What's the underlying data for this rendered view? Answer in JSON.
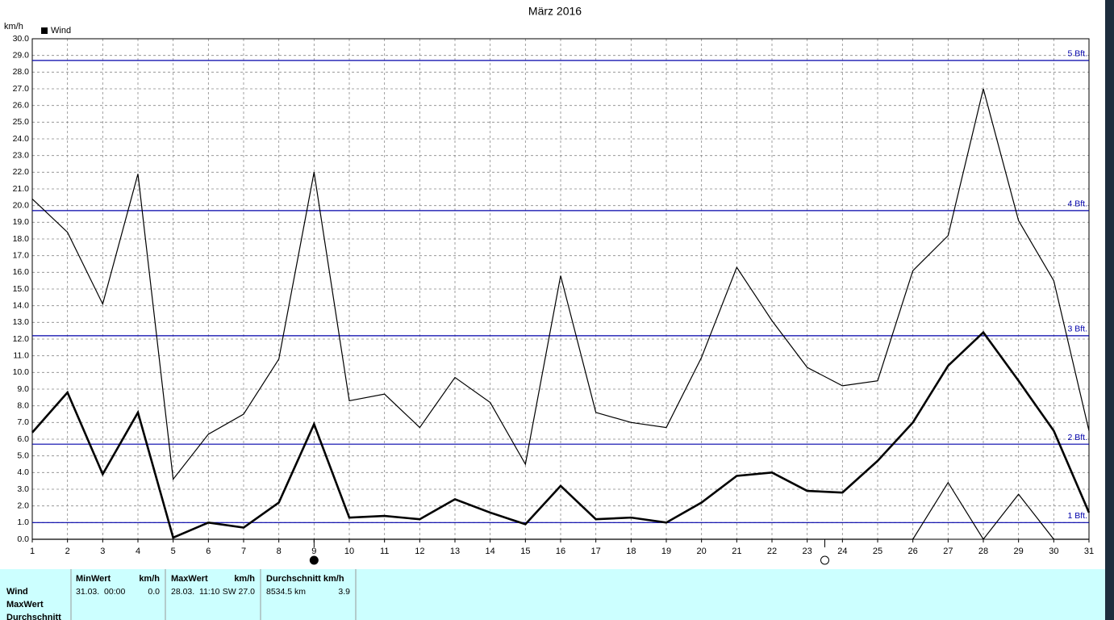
{
  "chart_data": {
    "type": "line",
    "title": "März 2016",
    "y_label": "km/h",
    "legend": "Wind",
    "x": [
      1,
      2,
      3,
      4,
      5,
      6,
      7,
      8,
      9,
      10,
      11,
      12,
      13,
      14,
      15,
      16,
      17,
      18,
      19,
      20,
      21,
      22,
      23,
      24,
      25,
      26,
      27,
      28,
      29,
      30,
      31
    ],
    "xlim": [
      1,
      31
    ],
    "xticks": [
      1,
      2,
      3,
      4,
      5,
      6,
      7,
      8,
      9,
      10,
      11,
      12,
      13,
      14,
      15,
      16,
      17,
      18,
      19,
      20,
      21,
      22,
      23,
      24,
      25,
      26,
      27,
      28,
      29,
      30,
      31
    ],
    "ylim": [
      0,
      30
    ],
    "yticks": [
      {
        "value": 0,
        "label": "0.0"
      },
      {
        "value": 1,
        "label": "1.0"
      },
      {
        "value": 2,
        "label": "2.0"
      },
      {
        "value": 3,
        "label": "3.0"
      },
      {
        "value": 4,
        "label": "4.0"
      },
      {
        "value": 5,
        "label": "5.0"
      },
      {
        "value": 6,
        "label": "6.0"
      },
      {
        "value": 7,
        "label": "7.0"
      },
      {
        "value": 8,
        "label": "8.0"
      },
      {
        "value": 9,
        "label": "9.0"
      },
      {
        "value": 10,
        "label": "10.0"
      },
      {
        "value": 11,
        "label": "11.0"
      },
      {
        "value": 12,
        "label": "12.0"
      },
      {
        "value": 13,
        "label": "13.0"
      },
      {
        "value": 14,
        "label": "14.0"
      },
      {
        "value": 15,
        "label": "15.0"
      },
      {
        "value": 16,
        "label": "16.0"
      },
      {
        "value": 17,
        "label": "17.0"
      },
      {
        "value": 18,
        "label": "18.0"
      },
      {
        "value": 19,
        "label": "19.0"
      },
      {
        "value": 20,
        "label": "20.0"
      },
      {
        "value": 21,
        "label": "21.0"
      },
      {
        "value": 22,
        "label": "22.0"
      },
      {
        "value": 23,
        "label": "23.0"
      },
      {
        "value": 24,
        "label": "24.0"
      },
      {
        "value": 25,
        "label": "25.0"
      },
      {
        "value": 26,
        "label": "26.0"
      },
      {
        "value": 27,
        "label": "27.0"
      },
      {
        "value": 28,
        "label": "28.0"
      },
      {
        "value": 29,
        "label": "29.0"
      },
      {
        "value": 30,
        "label": "30.0"
      }
    ],
    "grid": true,
    "series": [
      {
        "color": "#000000",
        "width": 1.2,
        "values": [
          20.4,
          18.4,
          14.1,
          21.9,
          3.6,
          6.3,
          7.5,
          10.8,
          22.0,
          8.3,
          8.7,
          6.7,
          9.7,
          8.2,
          4.5,
          15.8,
          7.6,
          7.0,
          6.7,
          10.9,
          16.3,
          13.1,
          10.3,
          9.2,
          9.5,
          16.1,
          18.2,
          27.0,
          19.1,
          15.5,
          6.5
        ]
      },
      {
        "color": "#000000",
        "width": 2.6,
        "values": [
          6.4,
          8.8,
          3.9,
          7.6,
          0.1,
          1.0,
          0.7,
          2.2,
          6.9,
          1.3,
          1.4,
          1.2,
          2.4,
          1.6,
          0.9,
          3.2,
          1.2,
          1.3,
          1.0,
          2.2,
          3.8,
          4.0,
          2.9,
          2.8,
          4.7,
          7.0,
          10.4,
          12.4,
          9.5,
          6.5,
          1.6
        ]
      },
      {
        "color": "#000000",
        "width": 1.2,
        "values": [
          0,
          0,
          0,
          0,
          0,
          0,
          0,
          0,
          0,
          0,
          0,
          0,
          0,
          0,
          0,
          0,
          0,
          0,
          0,
          0,
          0,
          0,
          0,
          0,
          0,
          0,
          3.4,
          0,
          2.7,
          0,
          0
        ]
      }
    ],
    "reference_lines": [
      {
        "value": 1.0,
        "label": "1 Bft.",
        "color": "#0000aa"
      },
      {
        "value": 5.7,
        "label": "2 Bft.",
        "color": "#0000aa"
      },
      {
        "value": 12.2,
        "label": "3 Bft.",
        "color": "#0000aa"
      },
      {
        "value": 19.7,
        "label": "4 Bft.",
        "color": "#0000aa"
      },
      {
        "value": 28.7,
        "label": "5 Bft.",
        "color": "#0000aa"
      }
    ],
    "moon_phases": [
      {
        "x": 9.0,
        "filled": true
      },
      {
        "x": 23.5,
        "filled": false
      }
    ]
  },
  "table": {
    "row_labels": [
      "Wind",
      "MaxWert",
      "Durchschnitt"
    ],
    "headers": [
      [
        "MinWert",
        "km/h"
      ],
      [
        "MaxWert",
        "km/h"
      ],
      [
        "Durchschnitt km/h"
      ]
    ],
    "rows": [
      [
        "31.03.  00:00",
        "0.0",
        "28.03.  11:10",
        "SW 27.0",
        "8534.5 km",
        "3.9"
      ]
    ]
  }
}
